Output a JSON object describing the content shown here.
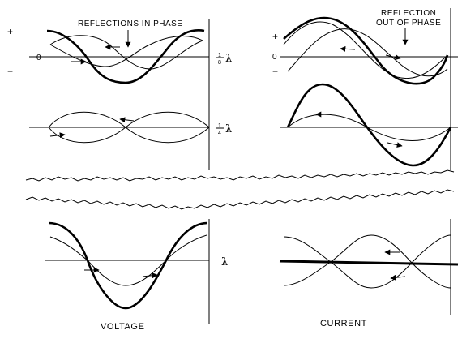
{
  "labels": {
    "reflections_in_phase": "REFLECTIONS IN PHASE",
    "reflection_out_line1": "REFLECTION",
    "reflection_out_line2": "OUT OF PHASE",
    "plus": "+",
    "minus": "−",
    "zero": "0",
    "frac_num": "1",
    "frac_den_eighth": "8",
    "frac_den_quarter": "4",
    "lambda": "λ",
    "voltage": "VOLTAGE",
    "current": "CURRENT"
  }
}
